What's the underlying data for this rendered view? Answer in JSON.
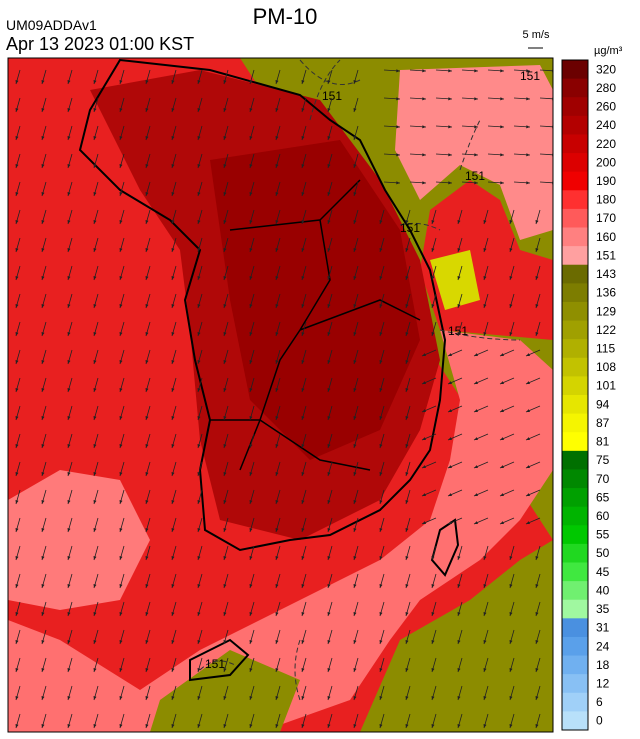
{
  "header": {
    "model": "UM09ADDAv1",
    "title": "PM-10",
    "datetime": "Apr 13 2023 01:00 KST",
    "vector_scale": "5 m/s"
  },
  "colorbar": {
    "unit": "µg/m³",
    "levels": [
      320,
      280,
      260,
      240,
      220,
      200,
      190,
      180,
      170,
      160,
      151,
      143,
      136,
      129,
      122,
      115,
      108,
      101,
      94,
      87,
      81,
      75,
      70,
      65,
      60,
      55,
      50,
      45,
      40,
      35,
      31,
      24,
      18,
      12,
      6,
      0
    ],
    "colors": [
      "#6b0000",
      "#8a0000",
      "#a00000",
      "#b30000",
      "#c80000",
      "#dc0000",
      "#f00000",
      "#ff3030",
      "#ff5a5a",
      "#ff8080",
      "#ffa0a0",
      "#6b6b00",
      "#7d7d00",
      "#8f8f00",
      "#a0a000",
      "#b0b000",
      "#c2c200",
      "#d4d400",
      "#e6e600",
      "#f5f500",
      "#ffff00",
      "#007000",
      "#008800",
      "#00a000",
      "#00b400",
      "#00c800",
      "#20d820",
      "#40e840",
      "#70f070",
      "#a0f8a0",
      "#4a90e0",
      "#5aa0ea",
      "#70b0f0",
      "#88c0f4",
      "#a0d0f8",
      "#b8e0fa"
    ]
  },
  "contour_labels": [
    "151",
    "151",
    "151",
    "151",
    "151",
    "151"
  ]
}
